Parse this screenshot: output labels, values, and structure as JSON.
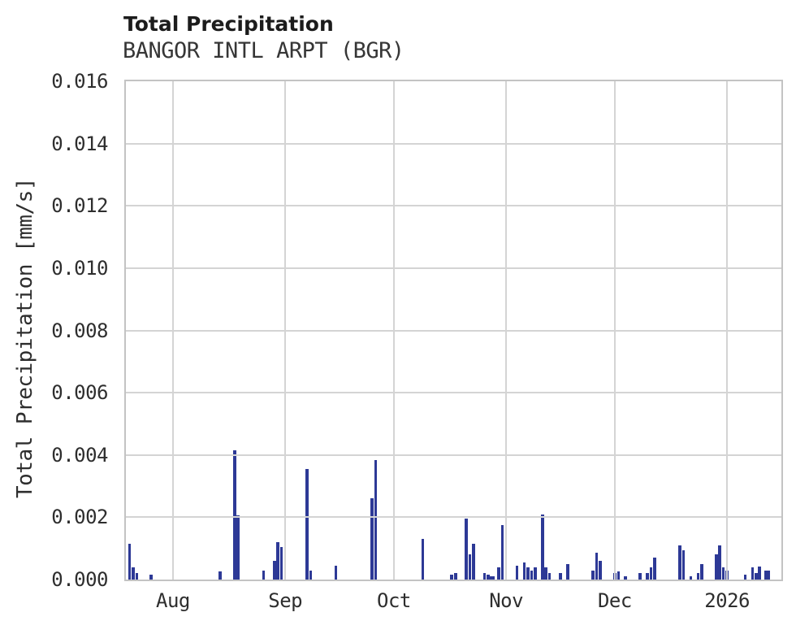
{
  "header": {
    "title": "Total Precipitation",
    "subtitle": "BANGOR INTL ARPT (BGR)"
  },
  "colors": {
    "background": "#ffffff",
    "bar": "#2d3996",
    "grid": "#d4d4d4",
    "frame": "#c3c3c3",
    "title_text": "#1c1c1c",
    "text": "#2e2e2e"
  },
  "chart_data": {
    "type": "bar",
    "title": "Total Precipitation",
    "subtitle": "BANGOR INTL ARPT (BGR)",
    "xlabel": "",
    "ylabel": "Total Precipitation [mm/s]",
    "ylim": [
      0,
      0.016
    ],
    "yticks": [
      "0.000",
      "0.002",
      "0.004",
      "0.006",
      "0.008",
      "0.010",
      "0.012",
      "0.014",
      "0.016"
    ],
    "grid": true,
    "legend": "none",
    "x_domain": {
      "start": "2025-07-19",
      "end": "2026-01-16"
    },
    "x_ticks": [
      {
        "date": "2025-08-01",
        "label": "Aug"
      },
      {
        "date": "2025-09-01",
        "label": "Sep"
      },
      {
        "date": "2025-10-01",
        "label": "Oct"
      },
      {
        "date": "2025-11-01",
        "label": "Nov"
      },
      {
        "date": "2025-12-01",
        "label": "Dec"
      },
      {
        "date": "2026-01-01",
        "label": "2026"
      }
    ],
    "series": [
      {
        "name": "Total Precipitation",
        "unit": "mm/s",
        "color": "#2d3996",
        "points": [
          [
            "2025-07-20",
            0.00115
          ],
          [
            "2025-07-21",
            0.0004
          ],
          [
            "2025-07-22",
            0.0002
          ],
          [
            "2025-07-26",
            0.00015
          ],
          [
            "2025-08-14",
            0.00025
          ],
          [
            "2025-08-18",
            0.00415
          ],
          [
            "2025-08-19",
            0.00205
          ],
          [
            "2025-08-26",
            0.0003
          ],
          [
            "2025-08-29",
            0.0006
          ],
          [
            "2025-08-30",
            0.0012
          ],
          [
            "2025-08-31",
            0.00105
          ],
          [
            "2025-09-07",
            0.00355
          ],
          [
            "2025-09-08",
            0.0003
          ],
          [
            "2025-09-15",
            0.00045
          ],
          [
            "2025-09-25",
            0.0026
          ],
          [
            "2025-09-26",
            0.00385
          ],
          [
            "2025-10-09",
            0.0013
          ],
          [
            "2025-10-17",
            0.00015
          ],
          [
            "2025-10-18",
            0.0002
          ],
          [
            "2025-10-21",
            0.00195
          ],
          [
            "2025-10-22",
            0.0008
          ],
          [
            "2025-10-23",
            0.00115
          ],
          [
            "2025-10-26",
            0.0002
          ],
          [
            "2025-10-27",
            0.00015
          ],
          [
            "2025-10-28",
            0.0001,
            1.5
          ],
          [
            "2025-10-30",
            0.0004
          ],
          [
            "2025-10-31",
            0.00175
          ],
          [
            "2025-11-04",
            0.00045
          ],
          [
            "2025-11-06",
            0.00055
          ],
          [
            "2025-11-07",
            0.0004
          ],
          [
            "2025-11-08",
            0.0003
          ],
          [
            "2025-11-09",
            0.0004
          ],
          [
            "2025-11-11",
            0.0021
          ],
          [
            "2025-11-12",
            0.0004
          ],
          [
            "2025-11-13",
            0.0002
          ],
          [
            "2025-11-16",
            0.0002
          ],
          [
            "2025-11-18",
            0.0005
          ],
          [
            "2025-11-25",
            0.0003
          ],
          [
            "2025-11-26",
            0.00085
          ],
          [
            "2025-11-27",
            0.0006
          ],
          [
            "2025-12-01",
            0.0002
          ],
          [
            "2025-12-02",
            0.00025
          ],
          [
            "2025-12-04",
            0.0001
          ],
          [
            "2025-12-08",
            0.0002
          ],
          [
            "2025-12-10",
            0.0002
          ],
          [
            "2025-12-11",
            0.0004
          ],
          [
            "2025-12-12",
            0.0007
          ],
          [
            "2025-12-19",
            0.0011
          ],
          [
            "2025-12-20",
            0.00095
          ],
          [
            "2025-12-22",
            0.0001
          ],
          [
            "2025-12-24",
            0.0002
          ],
          [
            "2025-12-25",
            0.0005
          ],
          [
            "2025-12-29",
            0.0008
          ],
          [
            "2025-12-30",
            0.0011
          ],
          [
            "2025-12-31",
            0.0004
          ],
          [
            "2026-01-01",
            0.0003
          ],
          [
            "2026-01-06",
            0.00015
          ],
          [
            "2026-01-08",
            0.0004
          ],
          [
            "2026-01-09",
            0.0002
          ],
          [
            "2026-01-10",
            0.00042
          ],
          [
            "2026-01-12",
            0.0003,
            1.6
          ]
        ]
      }
    ]
  }
}
